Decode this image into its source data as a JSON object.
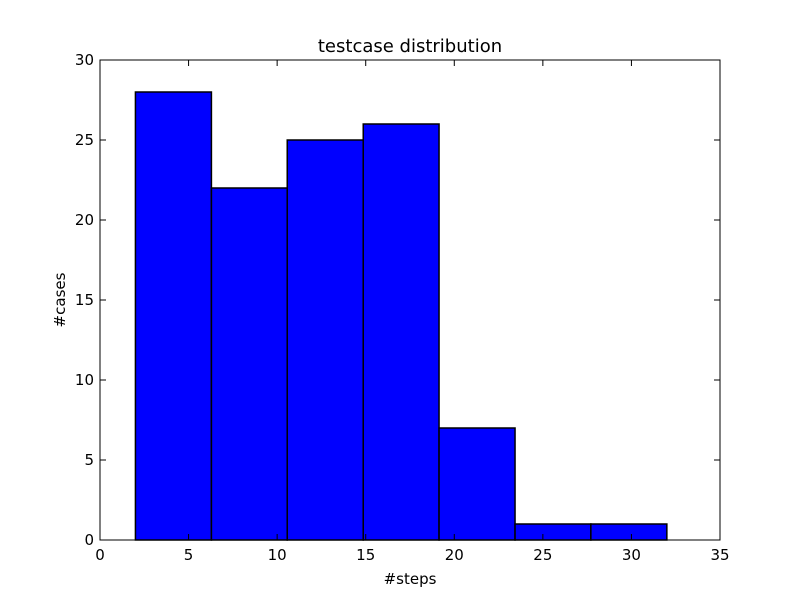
{
  "chart_data": {
    "type": "bar",
    "title": "testcase distribution",
    "xlabel": "#steps",
    "ylabel": "#cases",
    "xlim": [
      0,
      35
    ],
    "ylim": [
      0,
      30
    ],
    "xticks": [
      0,
      5,
      10,
      15,
      20,
      25,
      30,
      35
    ],
    "yticks": [
      0,
      5,
      10,
      15,
      20,
      25,
      30
    ],
    "grid": false,
    "bar_color": "#0000ff",
    "edge_color": "#000000",
    "bins": [
      {
        "x0": 2.0,
        "x1": 6.29,
        "value": 28
      },
      {
        "x0": 6.29,
        "x1": 10.57,
        "value": 22
      },
      {
        "x0": 10.57,
        "x1": 14.86,
        "value": 25
      },
      {
        "x0": 14.86,
        "x1": 19.14,
        "value": 26
      },
      {
        "x0": 19.14,
        "x1": 23.43,
        "value": 7
      },
      {
        "x0": 23.43,
        "x1": 27.71,
        "value": 1
      },
      {
        "x0": 27.71,
        "x1": 32.0,
        "value": 1
      }
    ]
  }
}
